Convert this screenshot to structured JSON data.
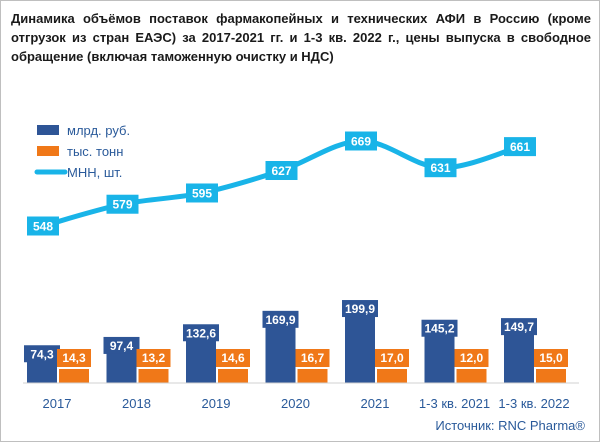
{
  "title": "Динамика объёмов поставок фармакопейных и технических АФИ в Россию (кроме отгрузок из стран ЕАЭС) за 2017-2021 гг. и 1-3 кв. 2022 г., цены выпуска в свободное обращение (включая таможенную очистку и НДС)",
  "source": "Источник: RNC Pharma®",
  "colors": {
    "bar_rub": "#2e5596",
    "bar_tonn": "#f07818",
    "line": "#19b4e8"
  },
  "chart_data": {
    "type": "bar",
    "title": "Динамика объёмов поставок фармакопейных и технических АФИ в Россию (кроме отгрузок из стран ЕАЭС) за 2017-2021 гг. и 1-3 кв. 2022 г., цены выпуска в свободное обращение (включая таможенную очистку и НДС)",
    "categories": [
      "2017",
      "2018",
      "2019",
      "2020",
      "2021",
      "1-3 кв. 2021",
      "1-3 кв. 2022"
    ],
    "series": [
      {
        "name": "млрд. руб.",
        "type": "bar",
        "values": [
          74.3,
          97.4,
          132.6,
          169.9,
          199.9,
          145.2,
          149.7
        ],
        "labels": [
          "74,3",
          "97,4",
          "132,6",
          "169,9",
          "199,9",
          "145,2",
          "149,7"
        ]
      },
      {
        "name": "тыс. тонн",
        "type": "bar",
        "values": [
          14.3,
          13.2,
          14.6,
          16.7,
          17.0,
          12.0,
          15.0
        ],
        "labels": [
          "14,3",
          "13,2",
          "14,6",
          "16,7",
          "17,0",
          "12,0",
          "15,0"
        ]
      },
      {
        "name": "МНН, шт.",
        "type": "line",
        "values": [
          548,
          579,
          595,
          627,
          669,
          631,
          661
        ],
        "labels": [
          "548",
          "579",
          "595",
          "627",
          "669",
          "631",
          "661"
        ]
      }
    ],
    "legend": "top-left",
    "grid": false
  }
}
